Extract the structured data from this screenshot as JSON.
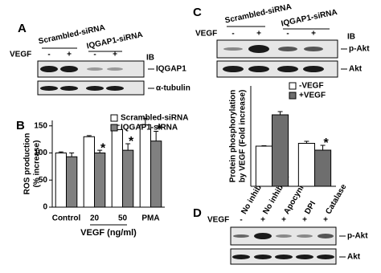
{
  "panels": {
    "a": {
      "label": "A",
      "groups": [
        "Scrambled-siRNA",
        "IQGAP1-siRNA"
      ],
      "row_label": "VEGF",
      "treatments": [
        "-",
        "+",
        "-",
        "+"
      ],
      "ib": "IB",
      "bands": [
        "IQGAP1",
        "α-tubulin"
      ]
    },
    "b": {
      "label": "B"
    },
    "c": {
      "label": "C",
      "groups": [
        "Scrambled-siRNA",
        "IQGAP1-siRNA"
      ],
      "row_label": "VEGF",
      "treatments": [
        "-",
        "+",
        "-",
        "+"
      ],
      "ib": "IB",
      "bands": [
        "p-Akt",
        "Akt"
      ]
    },
    "d": {
      "label": "D",
      "lanes": [
        "No inhibitor",
        "No inhibitor",
        "Apocynin",
        "DPI",
        "Catalase"
      ],
      "row_label": "VEGF",
      "treatments": [
        "-",
        "+",
        "+",
        "+",
        "+"
      ],
      "bands": [
        "p-Akt",
        "Akt"
      ]
    }
  },
  "chart_data": [
    {
      "type": "bar",
      "y_label": [
        "ROS production",
        "(% increase)"
      ],
      "x_label": "VEGF (ng/ml)",
      "categories": [
        "Control",
        "20",
        "50",
        "PMA"
      ],
      "series": [
        {
          "name": "Scrambled-siRNA",
          "color": "#ffffff",
          "values": [
            100,
            130,
            143,
            152
          ],
          "errors": [
            2,
            2,
            8,
            12
          ],
          "markers": [
            null,
            null,
            null,
            null
          ]
        },
        {
          "name": "IQGAP1-siRNA",
          "color": "#808080",
          "values": [
            93,
            100,
            105,
            122
          ],
          "errors": [
            7,
            5,
            12,
            18
          ],
          "markers": [
            null,
            "*",
            "*",
            "*"
          ]
        }
      ],
      "ylim": [
        0,
        160
      ],
      "yticks": [
        0,
        50,
        100,
        150
      ]
    },
    {
      "type": "bar",
      "y_label": [
        "Protein phosphorylation",
        "by VEGF (Fold increase)"
      ],
      "categories": [
        null,
        null
      ],
      "series": [
        {
          "name": "-VEGF",
          "color": "#ffffff",
          "values": [
            100,
            107
          ],
          "errors": [
            1,
            5
          ],
          "markers": [
            null,
            null
          ]
        },
        {
          "name": "+VEGF",
          "color": "#6e6e6e",
          "values": [
            178,
            90
          ],
          "errors": [
            8,
            12
          ],
          "markers": [
            null,
            "*"
          ]
        }
      ],
      "ylim": [
        0,
        250
      ]
    }
  ]
}
